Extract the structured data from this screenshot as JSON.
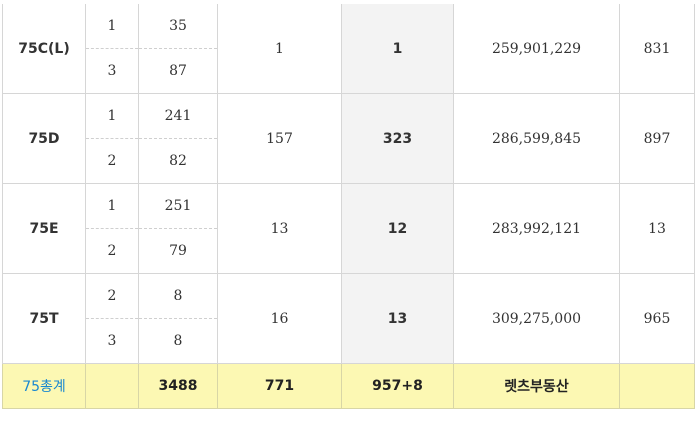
{
  "rows": [
    {
      "type": "75C(L)",
      "sub": [
        {
          "a": "1",
          "b": "35"
        },
        {
          "a": "3",
          "b": "87"
        }
      ],
      "c": "1",
      "d": "1",
      "e": "259,901,229",
      "f": "831"
    },
    {
      "type": "75D",
      "sub": [
        {
          "a": "1",
          "b": "241"
        },
        {
          "a": "2",
          "b": "82"
        }
      ],
      "c": "157",
      "d": "323",
      "e": "286,599,845",
      "f": "897"
    },
    {
      "type": "75E",
      "sub": [
        {
          "a": "1",
          "b": "251"
        },
        {
          "a": "2",
          "b": "79"
        }
      ],
      "c": "13",
      "d": "12",
      "e": "283,992,121",
      "f": "13"
    },
    {
      "type": "75T",
      "sub": [
        {
          "a": "2",
          "b": "8"
        },
        {
          "a": "3",
          "b": "8"
        }
      ],
      "c": "16",
      "d": "13",
      "e": "309,275,000",
      "f": "965"
    }
  ],
  "total": {
    "label": "75총계",
    "a": "",
    "b": "3488",
    "c": "771",
    "d": "957+8",
    "e": "렛츠부동산",
    "f": ""
  }
}
